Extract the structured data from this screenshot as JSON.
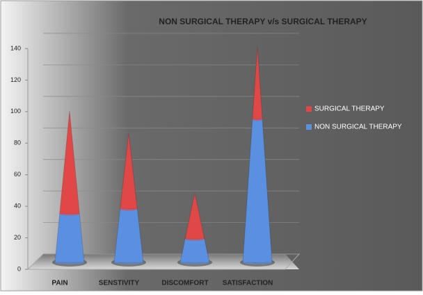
{
  "chart_data": {
    "type": "stacked_cone",
    "title": "NON SURGICAL THERAPY v/s SURGICAL THERAPY",
    "categories": [
      "PAIN",
      "SENSTIVITY",
      "DISCOMFORT",
      "SATISFACTION"
    ],
    "series": [
      {
        "name": "NON SURGICAL THERAPY",
        "color": "#5b8fe0",
        "values": [
          31,
          34,
          15,
          91
        ]
      },
      {
        "name": "SURGICAL THERAPY",
        "color": "#e04848",
        "values": [
          65,
          48,
          29,
          46
        ]
      }
    ],
    "ylim": [
      0,
      140
    ],
    "yticks": [
      0,
      20,
      40,
      60,
      80,
      100,
      120,
      140
    ],
    "grid": true,
    "legend": "right"
  }
}
